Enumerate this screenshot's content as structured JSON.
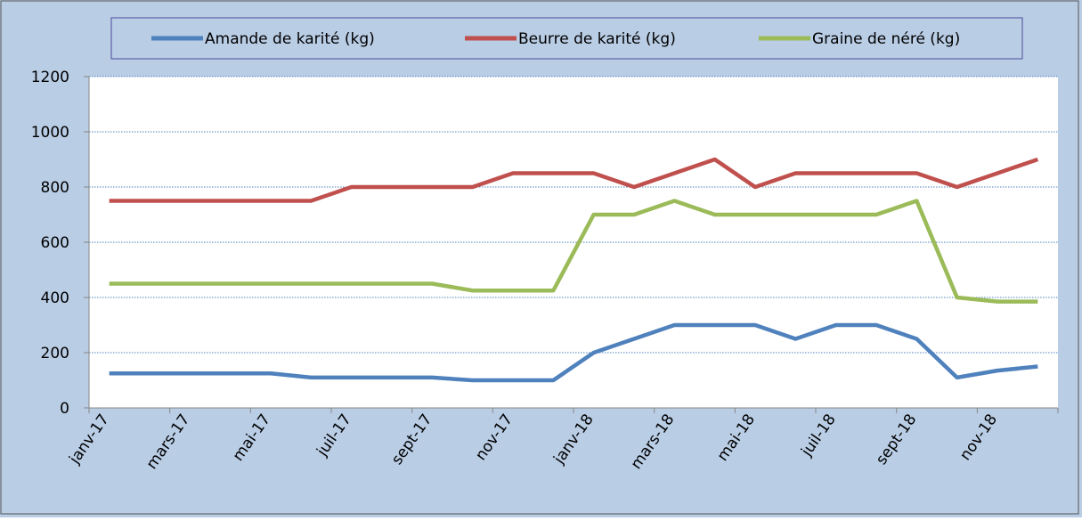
{
  "chart_data": {
    "type": "line",
    "categories": [
      "janv-17",
      null,
      "mars-17",
      null,
      "mai-17",
      null,
      "juil-17",
      null,
      "sept-17",
      null,
      "nov-17",
      null,
      "janv-18",
      null,
      "mars-18",
      null,
      "mai-18",
      null,
      "juil-18",
      null,
      "sept-18",
      null,
      "nov-18",
      null
    ],
    "series": [
      {
        "name": "Amande de karité (kg)",
        "color": "#4f81bd",
        "values": [
          125,
          125,
          125,
          125,
          125,
          110,
          110,
          110,
          110,
          100,
          100,
          100,
          200,
          250,
          300,
          300,
          300,
          250,
          300,
          300,
          250,
          110,
          135,
          150
        ]
      },
      {
        "name": "Beurre de karité (kg)",
        "color": "#c0504d",
        "values": [
          750,
          750,
          750,
          750,
          750,
          750,
          800,
          800,
          800,
          800,
          850,
          850,
          850,
          800,
          850,
          900,
          800,
          850,
          850,
          850,
          850,
          800,
          850,
          900
        ]
      },
      {
        "name": "Graine de néré (kg)",
        "color": "#9bbb59",
        "values": [
          450,
          450,
          450,
          450,
          450,
          450,
          450,
          450,
          450,
          425,
          425,
          425,
          700,
          700,
          750,
          700,
          700,
          700,
          700,
          700,
          750,
          400,
          385,
          385
        ]
      }
    ],
    "ylim": [
      0,
      1200
    ],
    "yticks": [
      0,
      200,
      400,
      600,
      800,
      1000,
      1200
    ],
    "grid": true,
    "legend": "top"
  }
}
